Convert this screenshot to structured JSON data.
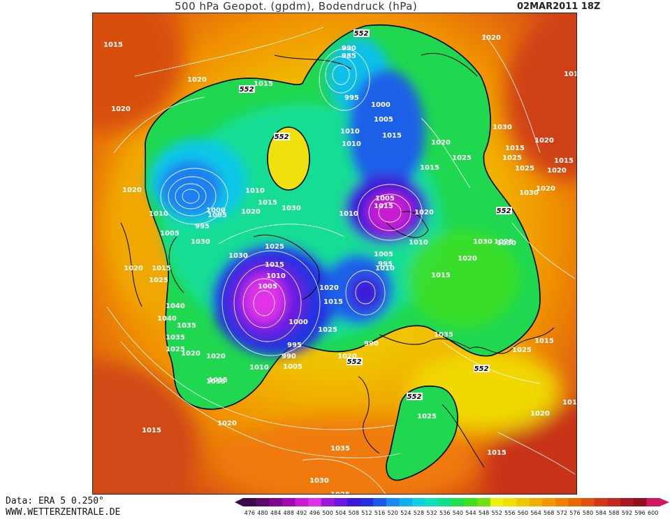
{
  "header": {
    "title": "500 hPa Geopot. (gpdm), Bodendruck (hPa)",
    "datetime": "02MAR2011 18Z"
  },
  "footer": {
    "data_source": "Data: ERA 5 0.250°",
    "website": "WWW.WETTERZENTRALE.DE"
  },
  "legend": {
    "values": [
      "476",
      "480",
      "484",
      "488",
      "492",
      "496",
      "500",
      "504",
      "508",
      "512",
      "516",
      "520",
      "524",
      "528",
      "532",
      "536",
      "540",
      "544",
      "548",
      "552",
      "556",
      "560",
      "564",
      "568",
      "572",
      "576",
      "580",
      "584",
      "588",
      "592",
      "596",
      "600"
    ],
    "colors": [
      "#3a0a4a",
      "#5c0a6e",
      "#7d0a8e",
      "#a00aae",
      "#c81ad2",
      "#e030e8",
      "#9a1ad8",
      "#6a1ae0",
      "#3a1ad8",
      "#2230e0",
      "#1a5ae8",
      "#1a88f0",
      "#10b0f0",
      "#10d0e0",
      "#10e0b8",
      "#10e088",
      "#20e050",
      "#40e020",
      "#70e010",
      "#f0f010",
      "#f0e000",
      "#f0c800",
      "#f0b000",
      "#f09800",
      "#f08000",
      "#e86800",
      "#e05010",
      "#d03818",
      "#c02820",
      "#a81820",
      "#901020",
      "#d01860"
    ]
  },
  "map": {
    "geopotential_labels": [
      {
        "text": "552"
      },
      {
        "text": "552"
      },
      {
        "text": "552"
      },
      {
        "text": "552"
      },
      {
        "text": "552"
      },
      {
        "text": "552"
      },
      {
        "text": "552"
      }
    ],
    "pressure_labels": [
      {
        "text": "1015"
      },
      {
        "text": "1020"
      },
      {
        "text": "1020"
      },
      {
        "text": "1015"
      },
      {
        "text": "1020"
      },
      {
        "text": "1010"
      },
      {
        "text": "1005"
      },
      {
        "text": "1030"
      },
      {
        "text": "1020"
      },
      {
        "text": "1015"
      },
      {
        "text": "1020"
      },
      {
        "text": "1025"
      },
      {
        "text": "1040"
      },
      {
        "text": "1035"
      },
      {
        "text": "1025"
      },
      {
        "text": "1020"
      },
      {
        "text": "1015"
      },
      {
        "text": "1020"
      },
      {
        "text": "1015"
      },
      {
        "text": "990"
      },
      {
        "text": "985"
      },
      {
        "text": "995"
      },
      {
        "text": "1000"
      },
      {
        "text": "1005"
      },
      {
        "text": "1010"
      },
      {
        "text": "1010"
      },
      {
        "text": "1015"
      },
      {
        "text": "1020"
      },
      {
        "text": "1025"
      },
      {
        "text": "1015"
      },
      {
        "text": "1010"
      },
      {
        "text": "1020"
      },
      {
        "text": "1015"
      },
      {
        "text": "1030"
      },
      {
        "text": "1000"
      },
      {
        "text": "995"
      },
      {
        "text": "1005"
      },
      {
        "text": "1010"
      },
      {
        "text": "1015"
      },
      {
        "text": "1025"
      },
      {
        "text": "1030"
      },
      {
        "text": "1015"
      },
      {
        "text": "1010"
      },
      {
        "text": "1005"
      },
      {
        "text": "1000"
      },
      {
        "text": "995"
      },
      {
        "text": "990"
      },
      {
        "text": "1005"
      },
      {
        "text": "1010"
      },
      {
        "text": "1020"
      },
      {
        "text": "1015"
      },
      {
        "text": "1010"
      },
      {
        "text": "1005"
      },
      {
        "text": "1010"
      },
      {
        "text": "1005"
      },
      {
        "text": "995"
      },
      {
        "text": "1015"
      },
      {
        "text": "990"
      },
      {
        "text": "1020"
      },
      {
        "text": "1040"
      },
      {
        "text": "1035"
      },
      {
        "text": "1035"
      },
      {
        "text": "1020"
      },
      {
        "text": "1025"
      },
      {
        "text": "1030"
      },
      {
        "text": "1025"
      },
      {
        "text": "1015"
      },
      {
        "text": "1020"
      },
      {
        "text": "1020"
      },
      {
        "text": "1030"
      },
      {
        "text": "1025"
      },
      {
        "text": "1015"
      },
      {
        "text": "1020"
      },
      {
        "text": "1025"
      },
      {
        "text": "1030"
      },
      {
        "text": "1015"
      },
      {
        "text": "1020"
      },
      {
        "text": "1015"
      },
      {
        "text": "1035"
      },
      {
        "text": "1030"
      },
      {
        "text": "1025"
      },
      {
        "text": "1015"
      },
      {
        "text": "1010"
      },
      {
        "text": "1010"
      },
      {
        "text": "1025"
      },
      {
        "text": "1020"
      },
      {
        "text": "1025"
      },
      {
        "text": "1015"
      },
      {
        "text": "1010"
      },
      {
        "text": "1030"
      },
      {
        "text": "1020"
      }
    ]
  }
}
